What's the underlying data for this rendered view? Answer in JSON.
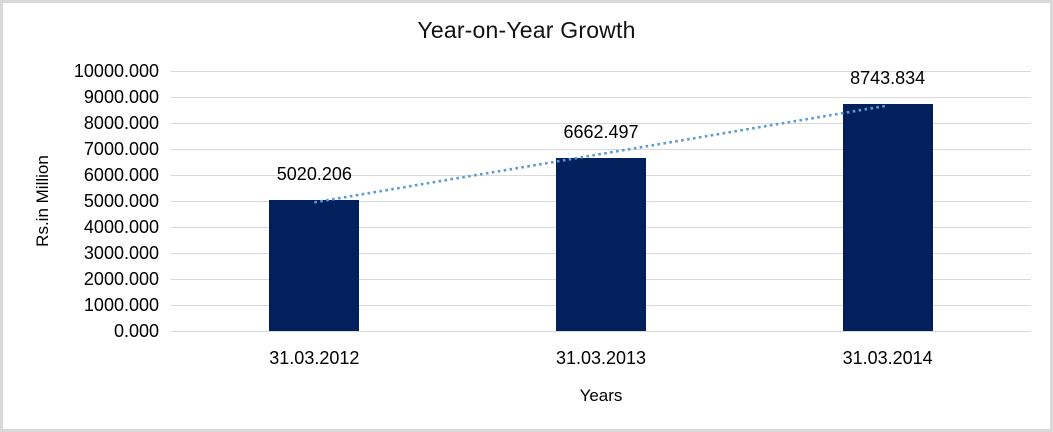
{
  "frame": {
    "background": "#FFFFFF",
    "border_color": "#D8D8D8"
  },
  "chart_data": {
    "type": "bar",
    "title": "Year-on-Year Growth",
    "xlabel": "Years",
    "ylabel": "Rs.in Million",
    "categories": [
      "31.03.2012",
      "31.03.2013",
      "31.03.2014"
    ],
    "values": [
      5020.206,
      6662.497,
      8743.834
    ],
    "data_labels": [
      "5020.206",
      "6662.497",
      "8743.834"
    ],
    "y_ticks": [
      "10000.000",
      "9000.000",
      "8000.000",
      "7000.000",
      "6000.000",
      "5000.000",
      "4000.000",
      "3000.000",
      "2000.000",
      "1000.000",
      "0.000"
    ],
    "ylim": [
      0,
      10000
    ],
    "grid": true,
    "legend": false,
    "bar_color": "#02215C",
    "gridline_color": "#D9D9D9",
    "trendline": {
      "type": "linear",
      "style": "dotted",
      "color": "#5B9BD5"
    }
  }
}
